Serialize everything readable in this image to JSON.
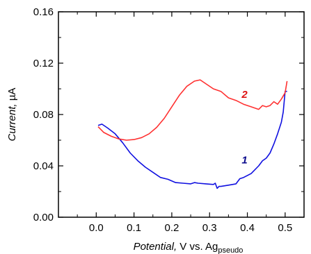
{
  "chart_data": {
    "type": "line",
    "title": "",
    "xlabel": {
      "italic": "Potential,",
      "plain": " V vs. Ag",
      "subscript": "pseudo"
    },
    "ylabel": {
      "italic": "Current,",
      "plain": " µA"
    },
    "xlim": [
      -0.1,
      0.55
    ],
    "ylim": [
      0.0,
      0.16
    ],
    "xticks": [
      "0.0",
      "0.1",
      "0.2",
      "0.3",
      "0.4",
      "0.5"
    ],
    "yticks": [
      "0.00",
      "0.04",
      "0.08",
      "0.12",
      "0.16"
    ],
    "grid": false,
    "series": [
      {
        "name": "1",
        "color": "#1010e0",
        "label_color": "#0a0a8c",
        "label_at": [
          0.385,
          0.042
        ],
        "x": [
          0.005,
          0.015,
          0.03,
          0.05,
          0.07,
          0.09,
          0.11,
          0.13,
          0.15,
          0.17,
          0.19,
          0.21,
          0.23,
          0.25,
          0.26,
          0.27,
          0.29,
          0.31,
          0.315,
          0.32,
          0.325,
          0.33,
          0.35,
          0.37,
          0.38,
          0.39,
          0.41,
          0.43,
          0.44,
          0.45,
          0.46,
          0.47,
          0.48,
          0.49,
          0.495,
          0.5,
          0.505
        ],
        "y": [
          0.0715,
          0.0725,
          0.0695,
          0.065,
          0.058,
          0.05,
          0.044,
          0.039,
          0.035,
          0.031,
          0.0295,
          0.027,
          0.0265,
          0.026,
          0.027,
          0.0265,
          0.026,
          0.0255,
          0.0265,
          0.0225,
          0.024,
          0.024,
          0.025,
          0.026,
          0.03,
          0.031,
          0.034,
          0.04,
          0.044,
          0.046,
          0.05,
          0.057,
          0.065,
          0.074,
          0.082,
          0.098,
          0.098
        ]
      },
      {
        "name": "2",
        "color": "#ff3030",
        "label_color": "#dd1010",
        "label_at": [
          0.385,
          0.093
        ],
        "x": [
          0.005,
          0.02,
          0.04,
          0.06,
          0.08,
          0.1,
          0.12,
          0.14,
          0.16,
          0.18,
          0.2,
          0.22,
          0.24,
          0.26,
          0.275,
          0.29,
          0.31,
          0.33,
          0.35,
          0.37,
          0.39,
          0.41,
          0.43,
          0.44,
          0.45,
          0.46,
          0.47,
          0.48,
          0.49,
          0.5,
          0.505
        ],
        "y": [
          0.0705,
          0.066,
          0.063,
          0.061,
          0.06,
          0.0605,
          0.062,
          0.065,
          0.07,
          0.077,
          0.086,
          0.095,
          0.102,
          0.106,
          0.107,
          0.104,
          0.1,
          0.098,
          0.093,
          0.091,
          0.088,
          0.086,
          0.084,
          0.087,
          0.086,
          0.087,
          0.09,
          0.088,
          0.092,
          0.097,
          0.106
        ]
      }
    ]
  }
}
